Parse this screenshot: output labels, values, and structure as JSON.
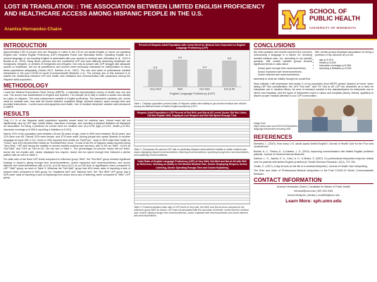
{
  "header": {
    "title": "LOST IN TRANSLATION: : THE ASSOCIATION BETWEEN LIMITED ENGLISH PROFICIENCY AND HEALTHCARE ACCESS AMONG HISPANIC PEOPLE IN THE U.S.",
    "author": "Arantxa Hernandez-Chaire",
    "logo_school": "SCHOOL OF PUBLIC HEALTH",
    "logo_university": "UNIVERSITY OF MINNESOTA"
  },
  "introduction": {
    "heading": "INTRODUCTION",
    "text": "Approximately 13% of people who are Hispanic or Latino in the US do not speak English or report not speaking English well. Limited English Proficiency (LEP) Integrated Public Use Microdata Series. Speaking English as a second language or not knowing English is associated with poor access to medical care (Shrestha et al., 2019 & Bonilla et al., 2019). Many times, persons who are considered LEP and have difficulty accessing healthcare are immigrants, refugees, or children of immigrants and refugees. Not only do people with LEP struggle with adequate access to healthcare, but not all practitioners and doctors meet necessary standards for interpretation to serve these populations adequately (Tonkin 2017; Karliner et al., 2007). The role and value of professional medical interpreters in the post COVID-19 world (Commonwealth Medicine n.d.). The primary aim of this research is to assess the relationship between LEP and health care utilization and communication with physicians among the Hispanic adult population."
  },
  "methodology": {
    "heading": "METHODOLOGY",
    "text": "I used the Medical Expenditure Panel Survey (MEPS), a nationally representative survey of health care use and cost. The survey was administered in English and Spanish. The sample (N=5,158) is limited to adults who identify as Latino or Hispanic. The main independent variable is English proficiency. The dependent variables are: unmet need for medical care, how well the doctor listened, explained things, showed respect, spent enough time and provided instructions. I control socio-demographics and health. Use of medical interpreter variable was introduced in MEPS."
  },
  "results": {
    "heading": "RESULTS",
    "paragraphs": [
      "Only 2.1 % of the Hispanic adult population reported unmet need for medical care. Unmet need did not significantly vary by LEP. Age, health status, insurance coverage, and reporting a physical limitation all displayed an association for being a predictor for unmet need for medical care at p<0.05 (age p=0.019, health p=0.003, insurance coverage p<0.006 & reporting a limitation p=0.031).",
      "Nearly, 31% of the population were between 18 and 34 years of age, close to 56% were between 35-64 years, and 12% were over 65. Overall, 53% were female, and 47% were male. Among people who speak Spanish or another language at home (SE=1.12). Close to 20% reported their health as \"Fair/Poor\", close to 36% rated their health as \"Good,\" and 44% reported their health as \"Excellent/Very Good.\" A total of 66.3% of Hispanic adults reported being \"Very Well;\" LEP and having the inability to receive needed medical care services, with 11.5% as \"Well\", 14.6% as \"Not Well\" and 7.6% as \"Not at All,\" we can see in Table 1. The percentages for percent doctor did not listen, doctor did not explain well, doctor displayed low respect, doctor did not spend enough time followed a similar pattern with as seen in Table 2.",
      "For odds ratio of the three LEP levels compared to reference group \"Well\", the \"Not Well\" group showed significant findings in doctor's giving enough time never/sometimes, doctor explained well never/sometimes, and doctor listened well never/sometimes with p<0.04, p<0.03 and p<0.01 at p<0.05 level of significance when compared to LEP \"Well\" group, as seen in Table 3. Whereas the \"Not Well\" group had 40% lower odds of reporting a lack of respect when compared to Well group, for \"explained well\" and \"listened well,\" the \"Not Well\" LEP group had a 53% lower odds of reporting a lack of explaining from doctor and a lack of listening, when compared to \"Well,\" LEP group."
    ]
  },
  "chart_data": {
    "type": "bar",
    "title": "Percent of Hispanic Adult Population with Unmet Need for Medical Care Depended on English Language Proficiency (LEP)",
    "x_label": "English Language Proficiency (LEP)",
    "categories": [
      "Very Well",
      "Well",
      "Not Well",
      "Not at All"
    ],
    "values": [
      6.3,
      9.9,
      6.4,
      9.6
    ],
    "color": "#c8c8c8",
    "ylim": [
      0,
      12
    ]
  },
  "figure_captions": {
    "table1": "Table 1. Displays population percent totals of Hispanic adults with inability to get needed medical care divided among the different levels of limited English proficiency (LEP).",
    "table2_title": "Hispanic Adult Population's LEP Percent of Not Well, and Not at All Levels Doctor Did Not Listen, Did Not Explain Well, Displayed Low Respect and Did Not Spend Enough Time",
    "table2": "Table 2. Showcases the percent LEP had on predicting Hispanic adult patient's inability to obtain medical care, doctor displaying respect never/sometimes, listening never/sometimes, spending enough time never/sometimes, and explaining never/sometimes.",
    "table3_title": "Odds Ratio of English Language Proficiency (LEP) of Very Well, Not Well and Not at All with Well as Reference, Showing an Ability to Get Needed Medical Care, Doctor Displaying Respect, Doctor Listening, Doctor Spending Enough Time and Doctor Explaining",
    "table3": "Table 3. Presents adjusted odds ratio of LEP levels of Very well, Not Well, and Not at all as compared to the reference group Well. As shown, LEP was not associated with the outcomes of interest: unmet need for medical care, doctor's giving enough time never/sometimes, doctor explained well never/sometimes and doctor listened well never/sometimes."
  },
  "conclusions": {
    "heading": "CONCLUSIONS",
    "left_text": "My main question and results explored the concerns surrounding if language is a barrier for receiving needed medical care—so, according to my specific question. Still, certain variable groups showed significant trends in odds ratios:",
    "left_bullets": [
      "Doctor gave enough time never/sometimes.",
      "Doctor explained well never/sometimes.",
      "Doctor listened well never/sometimes."
    ],
    "left_after": "adversely to what we initially thought we would find.",
    "right_text": "Still, certain groups displayed association for being a predictor of my outcome at p<0.05",
    "right_bullets": [
      "age p=0.019",
      "health p=0.003",
      "insurance coverage p<0.006",
      "reporting a limitation p=0.031"
    ],
    "closing": "Most critically I will emphasize that nearly ¼ of my population from MEPS speaks Spanish at home, when taking LEP into consideration, the 14% \"Not well\", and 7% \"Not at all\" LEP are described as a need for interpreter use in medical offices. An area of research needed is the standardization for interpreter use in clinics and hospitals, and the types of interpreters used in clinics and hospitals (family, friends, qualified) to discern proper medical attention to our LEP communities.",
    "image_caption": "Image from: https://www.nami.com/2021/10/20/patients-language-interpreters-ensuring.html"
  },
  "references": {
    "heading": "REFERENCES",
    "items": [
      "Shrestha, L. (2019). How many U.S. adults speak limited English? Journal of Health Care for the Poor and Underserved.",
      "Bonilla, A. C., Rivera, A., & Karliner, L. S. (2019). Improving communication with limited English proficient patients. Journal of General Internal Medicine.",
      "Karliner, L. S., Jacobs, E. A., Chen, A. H., & Mutha, S. (2007). Do professional interpreters improve clinical care for patients with limited English proficiency? Health Services Research, 42(2), 727-754.",
      "Tonkin, E. (2017). A day at work (in the life of a medical interpreter). Journal of Health Care Interpreting.",
      "The Role and Value of Professional Medical Interpreters in the Post COVID-19 World. Commonwealth Medicine."
    ]
  },
  "contact": {
    "heading": "CONTACT INFORMATION",
    "line1": "Arantxa Hernandez-Chaire | Candidate for Master of Public Health",
    "line2": "hernan8@umn.edu | 507-202-9301",
    "line3": "Donna McAlpine | Advisor | mcal004@umn.edu"
  },
  "footer": {
    "label": "Learn More:",
    "url": "sph.umn.edu"
  }
}
